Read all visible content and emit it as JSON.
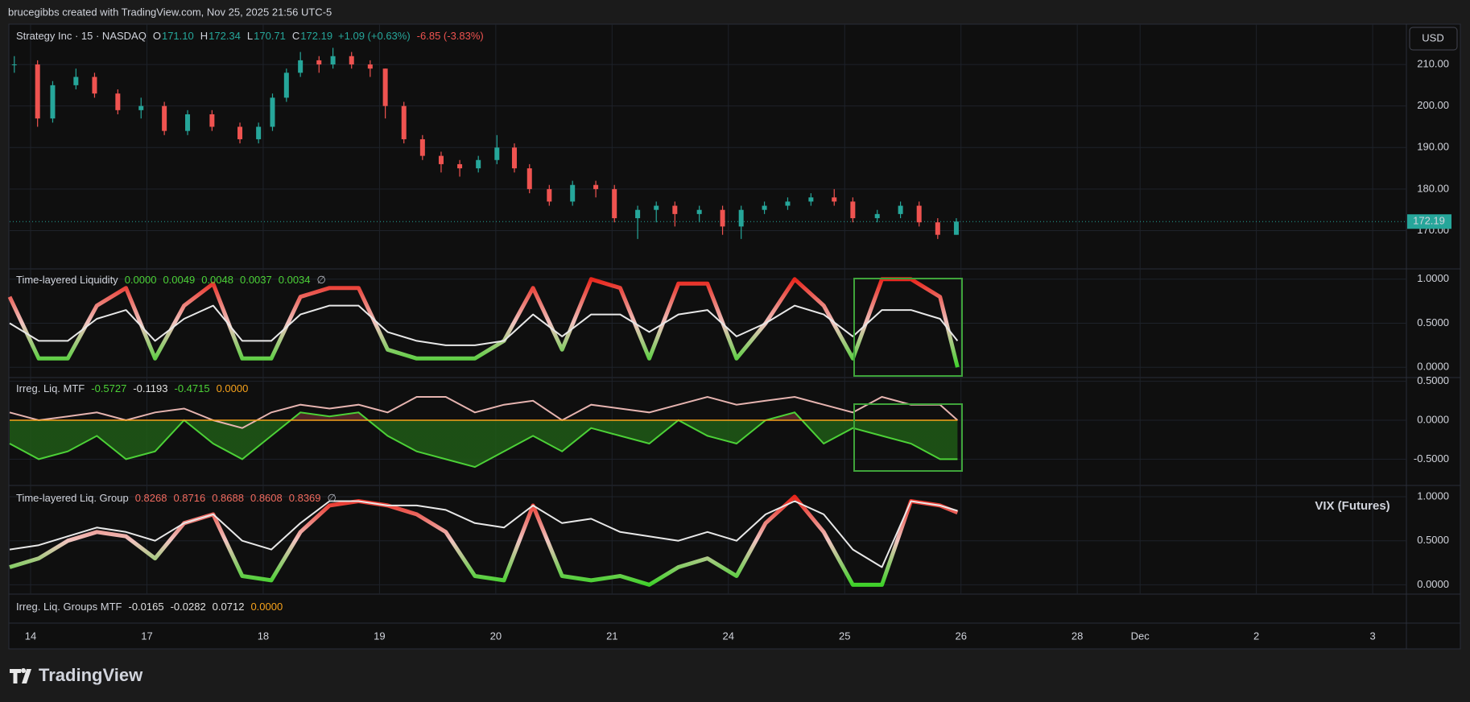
{
  "header": {
    "credit": "brucegibbs created with TradingView.com, Nov 25, 2025 21:56 UTC-5",
    "currency": "USD",
    "watermark": "VIX (Futures)",
    "brand": "TradingView"
  },
  "extra_pane": {
    "title": "Irreg. Liq. Groups MTF",
    "legend_values": [
      "-0.0165",
      "-0.0282",
      "0.0712",
      "0.0000"
    ],
    "legend_colors": [
      "#e0e0e0",
      "#e0e0e0",
      "#e0e0e0",
      "#f7a21b"
    ]
  },
  "chart_data": [
    {
      "type": "candlestick",
      "title": "Strategy Inc · 15 · NASDAQ",
      "ohlc_labels": [
        "O",
        "H",
        "L",
        "C"
      ],
      "ohlc_values": [
        "171.10",
        "172.34",
        "170.71",
        "172.19"
      ],
      "change": "+1.09 (+0.63%)",
      "day_change": "-6.85 (-3.83%)",
      "up_color": "#26a69a",
      "down_color": "#ef5350",
      "last_price": 172.19,
      "xlim": [
        -0.18,
        11.83
      ],
      "xticks": [
        {
          "value": 0,
          "label": "14"
        },
        {
          "value": 1,
          "label": "17"
        },
        {
          "value": 2,
          "label": "18"
        },
        {
          "value": 3,
          "label": "19"
        },
        {
          "value": 4,
          "label": "20"
        },
        {
          "value": 5,
          "label": "21"
        },
        {
          "value": 6,
          "label": "24"
        },
        {
          "value": 7,
          "label": "25"
        },
        {
          "value": 8,
          "label": "26"
        },
        {
          "value": 9,
          "label": "28"
        },
        {
          "value": 9.54,
          "label": "Dec"
        },
        {
          "value": 10.54,
          "label": "2"
        },
        {
          "value": 11.54,
          "label": "3"
        }
      ],
      "ylim": [
        160.8,
        219.7
      ],
      "yticks": [
        {
          "value": 170,
          "label": "170.00"
        },
        {
          "value": 180,
          "label": "180.00"
        },
        {
          "value": 190,
          "label": "190.00"
        },
        {
          "value": 200,
          "label": "200.00"
        },
        {
          "value": 210,
          "label": "210.00"
        }
      ],
      "x": [
        -0.14,
        0.06,
        0.19,
        0.39,
        0.55,
        0.75,
        0.95,
        1.15,
        1.35,
        1.56,
        1.8,
        1.96,
        2.08,
        2.2,
        2.32,
        2.48,
        2.6,
        2.76,
        2.92,
        3.05,
        3.21,
        3.37,
        3.53,
        3.69,
        3.85,
        4.01,
        4.16,
        4.29,
        4.46,
        4.66,
        4.86,
        5.02,
        5.22,
        5.38,
        5.54,
        5.75,
        5.95,
        6.11,
        6.31,
        6.51,
        6.71,
        6.91,
        7.07,
        7.28,
        7.48,
        7.64,
        7.8,
        7.96
      ],
      "open": [
        210,
        210,
        197,
        205,
        207,
        203,
        199,
        200,
        194,
        198,
        195,
        192,
        195,
        202,
        208,
        211,
        210,
        212,
        210,
        209,
        200,
        192,
        188,
        186,
        185,
        187,
        190,
        185,
        180,
        177,
        181,
        180,
        173,
        175,
        176,
        174,
        175,
        171,
        175,
        176,
        177,
        178,
        177,
        173,
        174,
        176,
        172,
        169
      ],
      "high": [
        212,
        211,
        206,
        209,
        208,
        204,
        202,
        201,
        199,
        199,
        196,
        196,
        203,
        209,
        213,
        212,
        214,
        213,
        211,
        209,
        201,
        193,
        189,
        187,
        188,
        193,
        191,
        186,
        181,
        182,
        182,
        181,
        176,
        177,
        177,
        176,
        176,
        176,
        177,
        178,
        179,
        180,
        178,
        175,
        177,
        177,
        173,
        173
      ],
      "low": [
        208,
        195,
        196,
        204,
        202,
        198,
        197,
        193,
        193,
        194,
        191,
        191,
        194,
        201,
        207,
        208,
        209,
        209,
        207,
        197,
        191,
        187,
        184,
        183,
        184,
        186,
        184,
        179,
        176,
        176,
        178,
        172,
        168,
        172,
        171,
        172,
        169,
        168,
        174,
        175,
        176,
        176,
        172,
        172,
        173,
        171,
        168,
        169
      ],
      "close": [
        210,
        197,
        205,
        207,
        203,
        199,
        200,
        194,
        198,
        195,
        192,
        195,
        202,
        208,
        211,
        210,
        212,
        210,
        209,
        200,
        192,
        188,
        186,
        185,
        187,
        190,
        185,
        180,
        177,
        181,
        180,
        173,
        175,
        176,
        174,
        175,
        171,
        175,
        176,
        177,
        178,
        177,
        173,
        174,
        176,
        172,
        169,
        172.19
      ]
    },
    {
      "type": "line",
      "title": "Time-layered Liquidity",
      "legend_values": [
        "0.0000",
        "0.0049",
        "0.0048",
        "0.0037",
        "0.0034",
        "∅"
      ],
      "legend_colors": [
        "#4cd137",
        "#4cd137",
        "#4cd137",
        "#4cd137",
        "#4cd137",
        "#b2b5be"
      ],
      "gradient": [
        "#e8261c",
        "#f0c4bf",
        "#3fd12a"
      ],
      "ylim": [
        -0.117,
        1.117
      ],
      "yticks": [
        {
          "value": 1,
          "label": "1.0000"
        },
        {
          "value": 0.5,
          "label": "0.5000"
        },
        {
          "value": 0,
          "label": "0.0000"
        }
      ],
      "x": [
        -0.18,
        0.07,
        0.32,
        0.57,
        0.82,
        1.07,
        1.32,
        1.57,
        1.82,
        2.07,
        2.32,
        2.57,
        2.82,
        3.07,
        3.32,
        3.57,
        3.82,
        4.07,
        4.32,
        4.57,
        4.82,
        5.07,
        5.32,
        5.57,
        5.82,
        6.07,
        6.32,
        6.57,
        6.82,
        7.07,
        7.32,
        7.57,
        7.82,
        7.97
      ],
      "series": [
        {
          "color": "gradient",
          "values": [
            0.8,
            0.1,
            0.1,
            0.7,
            0.9,
            0.1,
            0.7,
            0.95,
            0.1,
            0.1,
            0.8,
            0.9,
            0.9,
            0.2,
            0.1,
            0.1,
            0.1,
            0.3,
            0.9,
            0.2,
            1.0,
            0.9,
            0.1,
            0.95,
            0.95,
            0.1,
            0.5,
            1.0,
            0.7,
            0.1,
            1.0,
            1.0,
            0.8,
            0.0
          ]
        },
        {
          "color": "#e8e8e8",
          "values": [
            0.5,
            0.3,
            0.3,
            0.55,
            0.65,
            0.3,
            0.55,
            0.7,
            0.3,
            0.3,
            0.6,
            0.7,
            0.7,
            0.4,
            0.3,
            0.25,
            0.25,
            0.3,
            0.6,
            0.35,
            0.6,
            0.6,
            0.4,
            0.6,
            0.65,
            0.35,
            0.5,
            0.7,
            0.6,
            0.35,
            0.65,
            0.65,
            0.55,
            0.3
          ]
        }
      ]
    },
    {
      "type": "area",
      "title": "Irreg. Liq. MTF",
      "legend_values": [
        "-0.5727",
        "-0.1193",
        "-0.4715",
        "0.0000"
      ],
      "legend_colors": [
        "#4cd137",
        "#e0e0e0",
        "#4cd137",
        "#f7a21b"
      ],
      "fill_colors": [
        "#5a2a2a",
        "#1f5a16"
      ],
      "ylim": [
        -0.837,
        0.548
      ],
      "yticks": [
        {
          "value": 0.5,
          "label": "0.5000"
        },
        {
          "value": 0,
          "label": "0.0000"
        },
        {
          "value": -0.5,
          "label": "-0.5000"
        }
      ],
      "x": [
        -0.18,
        0.07,
        0.32,
        0.57,
        0.82,
        1.07,
        1.32,
        1.57,
        1.82,
        2.07,
        2.32,
        2.57,
        2.82,
        3.07,
        3.32,
        3.57,
        3.82,
        4.07,
        4.32,
        4.57,
        4.82,
        5.07,
        5.32,
        5.57,
        5.82,
        6.07,
        6.32,
        6.57,
        6.82,
        7.07,
        7.32,
        7.57,
        7.82,
        7.97
      ],
      "series": [
        {
          "color": "#4cd137",
          "values": [
            -0.3,
            -0.5,
            -0.4,
            -0.2,
            -0.5,
            -0.4,
            0.0,
            -0.3,
            -0.5,
            -0.2,
            0.1,
            0.05,
            0.1,
            -0.2,
            -0.4,
            -0.5,
            -0.6,
            -0.4,
            -0.2,
            -0.4,
            -0.1,
            -0.2,
            -0.3,
            0.0,
            -0.2,
            -0.3,
            0.0,
            0.1,
            -0.3,
            -0.1,
            -0.2,
            -0.3,
            -0.5,
            -0.5
          ]
        },
        {
          "color": "#e6b4b0",
          "values": [
            0.1,
            0.0,
            0.05,
            0.1,
            0.0,
            0.1,
            0.15,
            0.0,
            -0.1,
            0.1,
            0.2,
            0.15,
            0.2,
            0.1,
            0.3,
            0.3,
            0.1,
            0.2,
            0.25,
            0.0,
            0.2,
            0.15,
            0.1,
            0.2,
            0.3,
            0.2,
            0.25,
            0.3,
            0.2,
            0.1,
            0.3,
            0.2,
            0.2,
            0.0
          ]
        },
        {
          "color": "#f7a21b",
          "values": [
            0,
            0,
            0,
            0,
            0,
            0,
            0,
            0,
            0,
            0,
            0,
            0,
            0,
            0,
            0,
            0,
            0,
            0,
            0,
            0,
            0,
            0,
            0,
            0,
            0,
            0,
            0,
            0,
            0,
            0,
            0,
            0,
            0,
            0
          ]
        }
      ]
    },
    {
      "type": "line",
      "title": "Time-layered Liq. Group",
      "legend_values": [
        "0.8268",
        "0.8716",
        "0.8688",
        "0.8608",
        "0.8369",
        "∅"
      ],
      "legend_colors": [
        "#f06a5e",
        "#f06a5e",
        "#f06a5e",
        "#f06a5e",
        "#f06a5e",
        "#b2b5be"
      ],
      "gradient": [
        "#e8261c",
        "#f0c4bf",
        "#3fd12a"
      ],
      "ylim": [
        -0.106,
        1.128
      ],
      "yticks": [
        {
          "value": 1,
          "label": "1.0000"
        },
        {
          "value": 0.5,
          "label": "0.5000"
        },
        {
          "value": 0,
          "label": "0.0000"
        }
      ],
      "x": [
        -0.18,
        0.07,
        0.32,
        0.57,
        0.82,
        1.07,
        1.32,
        1.57,
        1.82,
        2.07,
        2.32,
        2.57,
        2.82,
        3.07,
        3.32,
        3.57,
        3.82,
        4.07,
        4.32,
        4.57,
        4.82,
        5.07,
        5.32,
        5.57,
        5.82,
        6.07,
        6.32,
        6.57,
        6.82,
        7.07,
        7.32,
        7.57,
        7.82,
        7.97
      ],
      "series": [
        {
          "color": "gradient",
          "values": [
            0.2,
            0.3,
            0.5,
            0.6,
            0.55,
            0.3,
            0.7,
            0.8,
            0.1,
            0.05,
            0.6,
            0.9,
            0.95,
            0.9,
            0.8,
            0.6,
            0.1,
            0.05,
            0.9,
            0.1,
            0.05,
            0.1,
            0.0,
            0.2,
            0.3,
            0.1,
            0.7,
            1.0,
            0.6,
            0.0,
            0.0,
            0.95,
            0.9,
            0.82
          ]
        },
        {
          "color": "#e8e8e8",
          "values": [
            0.4,
            0.45,
            0.55,
            0.65,
            0.6,
            0.5,
            0.7,
            0.8,
            0.5,
            0.4,
            0.7,
            0.95,
            0.95,
            0.9,
            0.9,
            0.85,
            0.7,
            0.65,
            0.9,
            0.7,
            0.75,
            0.6,
            0.55,
            0.5,
            0.6,
            0.5,
            0.8,
            0.95,
            0.8,
            0.4,
            0.2,
            0.95,
            0.9,
            0.84
          ]
        }
      ]
    }
  ]
}
